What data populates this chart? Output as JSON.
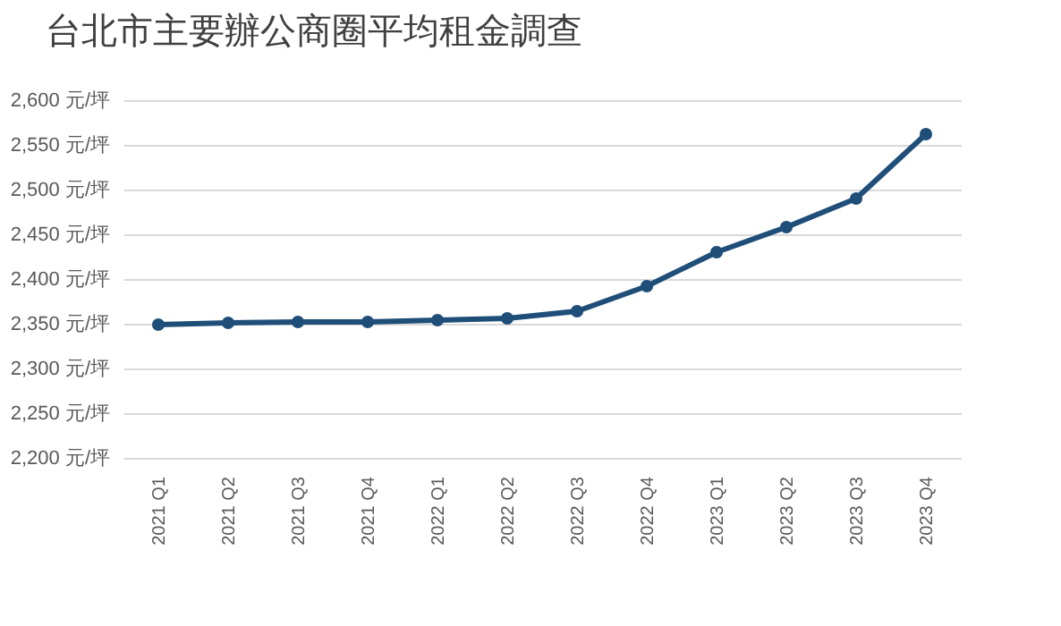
{
  "chart_data": {
    "type": "line",
    "title": "台北市主要辦公商圈平均租金調查",
    "categories": [
      "2021 Q1",
      "2021 Q2",
      "2021 Q3",
      "2021 Q4",
      "2022 Q1",
      "2022 Q2",
      "2022 Q3",
      "2022 Q4",
      "2023 Q1",
      "2023 Q2",
      "2023 Q3",
      "2023 Q4"
    ],
    "series": [
      {
        "color": "#1f4e79",
        "values": [
          2349,
          2351,
          2352,
          2352,
          2354,
          2356,
          2364,
          2392,
          2430,
          2458,
          2490,
          2562
        ]
      }
    ],
    "ylim": [
      2200,
      2600
    ],
    "yticks": [
      {
        "value": 2200,
        "label": "2,200 元/坪"
      },
      {
        "value": 2250,
        "label": "2,250 元/坪"
      },
      {
        "value": 2300,
        "label": "2,300 元/坪"
      },
      {
        "value": 2350,
        "label": "2,350 元/坪"
      },
      {
        "value": 2400,
        "label": "2,400 元/坪"
      },
      {
        "value": 2450,
        "label": "2,450 元/坪"
      },
      {
        "value": 2500,
        "label": "2,500 元/坪"
      },
      {
        "value": 2550,
        "label": "2,550 元/坪"
      },
      {
        "value": 2600,
        "label": "2,600 元/坪"
      }
    ],
    "grid": "y",
    "marker": "circle",
    "line_style": "solid"
  }
}
